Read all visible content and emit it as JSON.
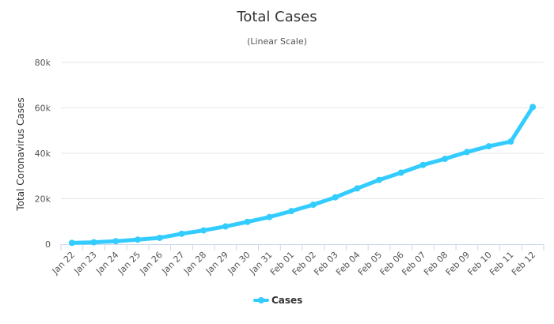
{
  "chart_data": {
    "type": "line",
    "title": "Total Cases",
    "subtitle": "(Linear Scale)",
    "xlabel": "",
    "ylabel": "Total Coronavirus Cases",
    "ylim": [
      0,
      80000
    ],
    "yticks": [
      0,
      20000,
      40000,
      60000,
      80000
    ],
    "ytick_labels": [
      "0",
      "20k",
      "40k",
      "60k",
      "80k"
    ],
    "categories": [
      "Jan 22",
      "Jan 23",
      "Jan 24",
      "Jan 25",
      "Jan 26",
      "Jan 27",
      "Jan 28",
      "Jan 29",
      "Jan 30",
      "Jan 31",
      "Feb 01",
      "Feb 02",
      "Feb 03",
      "Feb 04",
      "Feb 05",
      "Feb 06",
      "Feb 07",
      "Feb 08",
      "Feb 09",
      "Feb 10",
      "Feb 11",
      "Feb 12"
    ],
    "series": [
      {
        "name": "Cases",
        "color": "#33ccff",
        "values": [
          580,
          845,
          1317,
          2015,
          2800,
          4581,
          6058,
          7813,
          9823,
          11950,
          14553,
          17391,
          20630,
          24554,
          28276,
          31481,
          34886,
          37558,
          40554,
          43103,
          45171,
          60381
        ]
      }
    ],
    "grid": "horizontal",
    "legend": "bottom-center"
  }
}
